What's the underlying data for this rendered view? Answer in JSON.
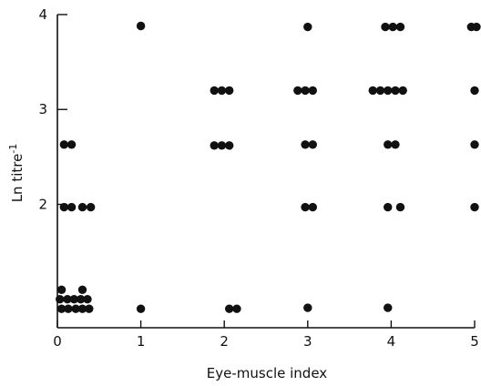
{
  "chart_data": {
    "type": "scatter",
    "title": "",
    "xlabel": "Eye-muscle index",
    "ylabel": "Ln titre",
    "ylabel_superscript": "-1",
    "xlim": [
      0,
      5
    ],
    "ylim": [
      0.7,
      4
    ],
    "x_ticks": [
      "0",
      "1",
      "2",
      "3",
      "4",
      "5"
    ],
    "y_ticks": [
      "2",
      "3",
      "4"
    ],
    "grid": false,
    "marker_color": "#111111",
    "points": [
      {
        "x": 1.0,
        "y": 3.88
      },
      {
        "x": 3.0,
        "y": 3.87
      },
      {
        "x": 3.93,
        "y": 3.87
      },
      {
        "x": 4.02,
        "y": 3.87
      },
      {
        "x": 4.11,
        "y": 3.87
      },
      {
        "x": 4.96,
        "y": 3.87
      },
      {
        "x": 5.04,
        "y": 3.87
      },
      {
        "x": 1.88,
        "y": 3.2
      },
      {
        "x": 1.97,
        "y": 3.2
      },
      {
        "x": 2.06,
        "y": 3.2
      },
      {
        "x": 2.88,
        "y": 3.2
      },
      {
        "x": 2.97,
        "y": 3.2
      },
      {
        "x": 3.06,
        "y": 3.2
      },
      {
        "x": 3.78,
        "y": 3.2
      },
      {
        "x": 3.87,
        "y": 3.2
      },
      {
        "x": 3.96,
        "y": 3.2
      },
      {
        "x": 4.05,
        "y": 3.2
      },
      {
        "x": 4.14,
        "y": 3.2
      },
      {
        "x": 5.0,
        "y": 3.2
      },
      {
        "x": 0.08,
        "y": 2.63
      },
      {
        "x": 0.17,
        "y": 2.63
      },
      {
        "x": 1.88,
        "y": 2.62
      },
      {
        "x": 1.97,
        "y": 2.62
      },
      {
        "x": 2.06,
        "y": 2.62
      },
      {
        "x": 2.97,
        "y": 2.63
      },
      {
        "x": 3.06,
        "y": 2.63
      },
      {
        "x": 3.96,
        "y": 2.63
      },
      {
        "x": 4.05,
        "y": 2.63
      },
      {
        "x": 5.0,
        "y": 2.63
      },
      {
        "x": 0.08,
        "y": 1.97
      },
      {
        "x": 0.17,
        "y": 1.97
      },
      {
        "x": 0.3,
        "y": 1.97
      },
      {
        "x": 0.4,
        "y": 1.97
      },
      {
        "x": 2.97,
        "y": 1.97
      },
      {
        "x": 3.06,
        "y": 1.97
      },
      {
        "x": 3.96,
        "y": 1.97
      },
      {
        "x": 4.11,
        "y": 1.97
      },
      {
        "x": 5.0,
        "y": 1.97
      },
      {
        "x": 0.05,
        "y": 1.1
      },
      {
        "x": 0.3,
        "y": 1.1
      },
      {
        "x": 0.03,
        "y": 1.0
      },
      {
        "x": 0.12,
        "y": 1.0
      },
      {
        "x": 0.2,
        "y": 1.0
      },
      {
        "x": 0.28,
        "y": 1.0
      },
      {
        "x": 0.36,
        "y": 1.0
      },
      {
        "x": 0.05,
        "y": 0.9
      },
      {
        "x": 0.13,
        "y": 0.9
      },
      {
        "x": 0.22,
        "y": 0.9
      },
      {
        "x": 0.3,
        "y": 0.9
      },
      {
        "x": 0.38,
        "y": 0.9
      },
      {
        "x": 1.0,
        "y": 0.9
      },
      {
        "x": 2.06,
        "y": 0.9
      },
      {
        "x": 2.15,
        "y": 0.9
      },
      {
        "x": 3.0,
        "y": 0.91
      },
      {
        "x": 3.96,
        "y": 0.91
      }
    ]
  }
}
